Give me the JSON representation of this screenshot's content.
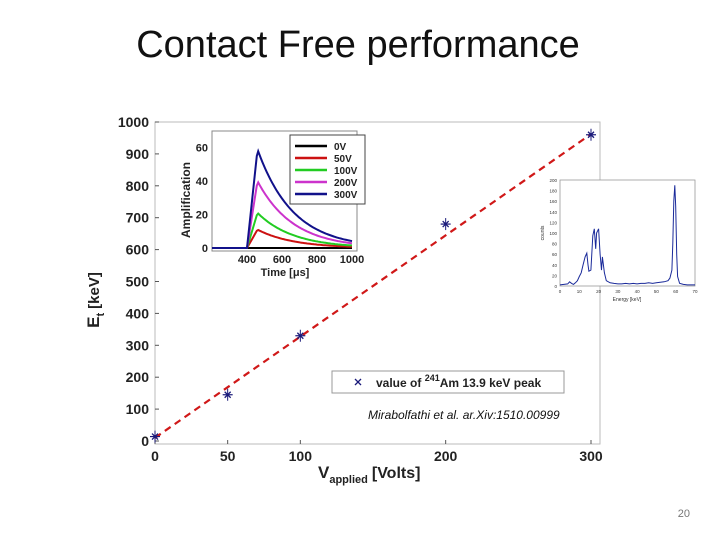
{
  "slide": {
    "title": "Contact Free performance",
    "citation": "Mirabolfathi et al. ar.Xiv:1510.00999",
    "page_number": "20"
  },
  "chart_data": [
    {
      "type": "scatter",
      "title": "",
      "xlabel_main": "V",
      "xlabel_sub": "applied",
      "xlabel_unit": "[Volts]",
      "ylabel_main": "E",
      "ylabel_sub": "t",
      "ylabel_unit": "[keV]",
      "xlim": [
        0,
        300
      ],
      "ylim": [
        0,
        1000
      ],
      "x_ticks": [
        "0",
        "50",
        "100",
        "200",
        "300"
      ],
      "x_tick_values": [
        0,
        50,
        100,
        200,
        300
      ],
      "y_ticks": [
        "0",
        "100",
        "200",
        "300",
        "400",
        "500",
        "600",
        "700",
        "800",
        "900",
        "1000"
      ],
      "y_tick_values": [
        0,
        100,
        200,
        300,
        400,
        500,
        600,
        700,
        800,
        900,
        1000
      ],
      "series": [
        {
          "name_prefix": "value of ",
          "name_sup": "241",
          "name_suffix": "Am 13.9 keV peak",
          "marker": "x",
          "color": "#1a1a7a",
          "x": [
            0,
            50,
            100,
            200,
            300
          ],
          "y": [
            13.9,
            145,
            330,
            680,
            960
          ]
        }
      ],
      "fit_line": {
        "x": [
          0,
          300
        ],
        "y": [
          10,
          962
        ],
        "color": "#d01818",
        "style": "dashed"
      },
      "legend_position": "bottom-right"
    },
    {
      "type": "line",
      "xlabel": "Time [μs]",
      "ylabel": "Amplification",
      "xlim": [
        200,
        1000
      ],
      "ylim": [
        0,
        70
      ],
      "x_ticks": [
        "400",
        "600",
        "800",
        "1000"
      ],
      "y_ticks": [
        "0",
        "20",
        "40",
        "60"
      ],
      "legend_position": "top-right",
      "series": [
        {
          "name": "0V",
          "color": "#000000",
          "peak": 0
        },
        {
          "name": "50V",
          "color": "#cc1111",
          "peak": 11
        },
        {
          "name": "100V",
          "color": "#22cc22",
          "peak": 21
        },
        {
          "name": "200V",
          "color": "#cc33cc",
          "peak": 40
        },
        {
          "name": "300V",
          "color": "#11118a",
          "peak": 59
        }
      ],
      "peak_time": 460,
      "start_time": 400,
      "end_value_fraction": 0.07
    },
    {
      "type": "line",
      "xlabel": "Energy [keV]",
      "ylabel": "counts",
      "xlim": [
        0,
        70
      ],
      "ylim": [
        0,
        200
      ],
      "x_ticks": [
        "0",
        "10",
        "20",
        "30",
        "40",
        "50",
        "60",
        "70"
      ],
      "y_ticks": [
        "0",
        "20",
        "40",
        "60",
        "80",
        "100",
        "120",
        "140",
        "160",
        "180",
        "200"
      ],
      "series": [
        {
          "name": "spectrum",
          "color": "#1a2a9a",
          "x": [
            0,
            2,
            4,
            5,
            6,
            7,
            8,
            9,
            10,
            11,
            12,
            13,
            13.9,
            14.5,
            15,
            16,
            17,
            17.8,
            18.5,
            19,
            20,
            20.8,
            21.5,
            22,
            23,
            24,
            26,
            28,
            30,
            32,
            34,
            36,
            38,
            40,
            42,
            44,
            46,
            48,
            50,
            52,
            54,
            56,
            57,
            58,
            58.5,
            59,
            59.5,
            60,
            60.5,
            61,
            62,
            64,
            66,
            68,
            70
          ],
          "y": [
            2,
            3,
            4,
            8,
            5,
            3,
            6,
            10,
            18,
            25,
            40,
            55,
            62,
            40,
            28,
            30,
            95,
            108,
            70,
            100,
            108,
            60,
            30,
            55,
            25,
            10,
            6,
            5,
            4,
            4,
            5,
            4,
            5,
            4,
            5,
            5,
            6,
            5,
            6,
            7,
            8,
            10,
            15,
            30,
            80,
            160,
            190,
            150,
            60,
            18,
            5,
            3,
            2,
            2,
            2
          ]
        }
      ]
    }
  ]
}
